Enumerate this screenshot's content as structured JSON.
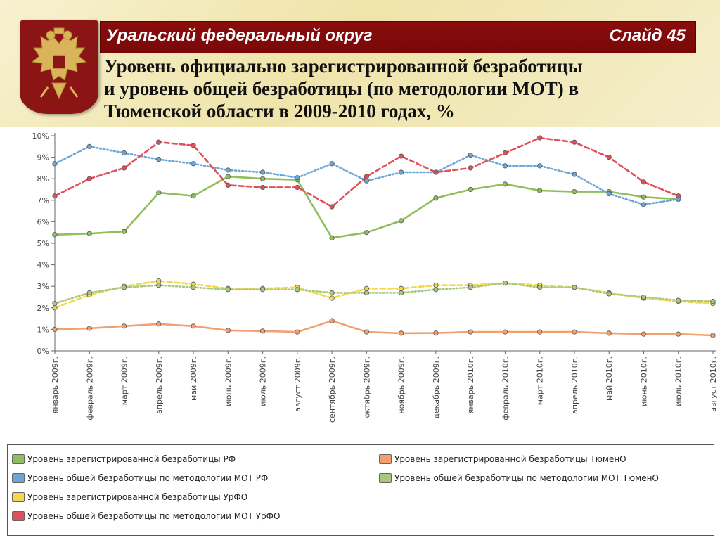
{
  "header": {
    "region_title": "Уральский федеральный округ",
    "slide_label": "Слайд 45",
    "subtitle": "Уровень официально зарегистрированной безработицы\nи уровень общей безработицы (по методологии МОТ) в\nТюменской области в 2009-2010 годах, %"
  },
  "colors": {
    "band": "#7f0b0b",
    "header_bg": "#f1e7b4",
    "green": "#8fbe5a",
    "blue": "#6aa6d8",
    "yellow": "#f2d84a",
    "red": "#e0505a",
    "orange": "#f2a070",
    "olive": "#a9c77e"
  },
  "chart_data": {
    "type": "line",
    "y_ticks": [
      "0%",
      "1%",
      "2%",
      "3%",
      "4%",
      "5%",
      "6%",
      "7%",
      "8%",
      "9%",
      "10%"
    ],
    "ylim": [
      0,
      10
    ],
    "grid": false,
    "legend_position": "bottom",
    "categories": [
      "январь 2009г.",
      "февраль 2009г.",
      "март 2009г.",
      "апрель 2009г.",
      "май 2009г.",
      "июнь 2009г.",
      "июль 2009г.",
      "август 2009г.",
      "сентябрь 2009г.",
      "октябрь 2009г.",
      "ноябрь 2009г.",
      "декабрь 2009г.",
      "январь 2010г.",
      "февраль 2010г.",
      "март 2010г.",
      "апрель 2010г.",
      "май 2010г.",
      "июнь 2010г.",
      "июль 2010г.",
      "август 2010г."
    ],
    "series": [
      {
        "name": "Уровень зарегистрированной безработицы РФ",
        "color": "#8fbe5a",
        "style": "solid",
        "values": [
          5.4,
          5.45,
          5.55,
          7.35,
          7.2,
          8.1,
          8.0,
          7.95,
          5.25,
          5.5,
          6.05,
          7.1,
          7.5,
          7.75,
          7.45,
          7.4,
          7.4,
          7.15,
          7.05,
          null
        ]
      },
      {
        "name": "Уровень общей безработицы по методологии МОТ РФ",
        "color": "#6aa6d8",
        "style": "dotted",
        "values": [
          8.7,
          9.5,
          9.2,
          8.9,
          8.7,
          8.4,
          8.3,
          8.05,
          8.7,
          7.9,
          8.3,
          8.3,
          9.1,
          8.6,
          8.6,
          8.2,
          7.3,
          6.8,
          7.05,
          null
        ]
      },
      {
        "name": "Уровень зарегистрированной безработицы УрФО",
        "color": "#f2d84a",
        "style": "dashed",
        "values": [
          2.0,
          2.6,
          3.0,
          3.25,
          3.1,
          2.9,
          2.9,
          2.95,
          2.45,
          2.9,
          2.9,
          3.05,
          3.05,
          3.15,
          3.05,
          2.95,
          2.7,
          2.45,
          2.3,
          2.2
        ]
      },
      {
        "name": "Уровень общей безработицы по методологии МОТ УрФО",
        "color": "#e0505a",
        "style": "dashed",
        "values": [
          7.2,
          8.0,
          8.5,
          9.7,
          9.55,
          7.7,
          7.6,
          7.6,
          6.7,
          8.1,
          9.05,
          8.3,
          8.5,
          9.2,
          9.9,
          9.7,
          9.0,
          7.85,
          7.2,
          null
        ]
      },
      {
        "name": "Уровень зарегистрированной безработицы ТюменО",
        "color": "#f2a070",
        "style": "solid",
        "values": [
          1.0,
          1.05,
          1.15,
          1.25,
          1.15,
          0.95,
          0.92,
          0.88,
          1.4,
          0.88,
          0.82,
          0.83,
          0.88,
          0.88,
          0.88,
          0.88,
          0.82,
          0.78,
          0.78,
          0.72
        ]
      },
      {
        "name": "Уровень общей безработицы по методологии МОТ ТюменО",
        "color": "#a9c77e",
        "style": "dotted",
        "values": [
          2.2,
          2.7,
          2.95,
          3.05,
          2.95,
          2.85,
          2.85,
          2.85,
          2.7,
          2.7,
          2.7,
          2.85,
          2.95,
          3.15,
          2.95,
          2.95,
          2.65,
          2.5,
          2.35,
          2.3
        ]
      }
    ]
  },
  "legend": {
    "items": [
      "Уровень зарегистрированной безработицы РФ",
      "Уровень общей безработицы по методологии МОТ РФ",
      "Уровень зарегистрированной безработицы УрФО",
      "Уровень общей безработицы по методологии МОТ УрФО",
      "Уровень зарегистрированной безработицы  ТюменО",
      "Уровень общей безработицы по методологии МОТ  ТюменО"
    ]
  }
}
